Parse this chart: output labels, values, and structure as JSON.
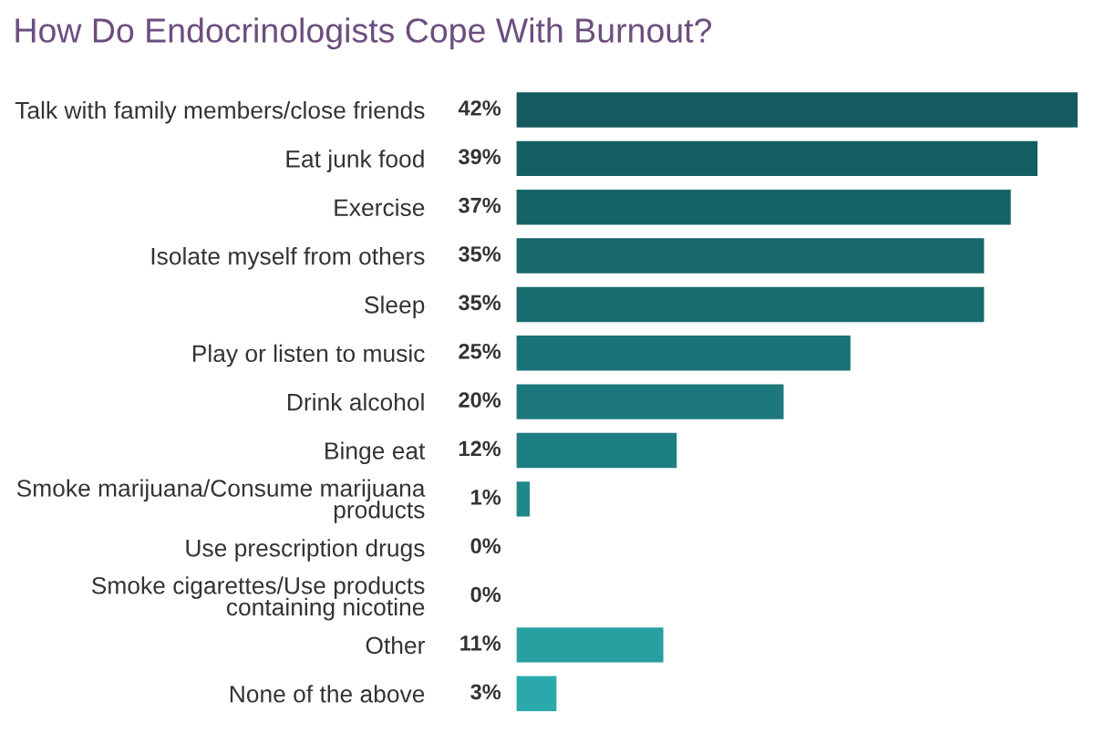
{
  "chart_data": {
    "type": "bar",
    "orientation": "horizontal",
    "title": "How Do Endocrinologists Cope With Burnout?",
    "categories": [
      "Talk with family members/close friends",
      "Eat junk food",
      "Exercise",
      "Isolate myself from others",
      "Sleep",
      "Play or listen to music",
      "Drink alcohol",
      "Binge eat",
      "Smoke marijuana/Consume marijuana\nproducts",
      "Use prescription drugs",
      "Smoke cigarettes/Use products\ncontaining nicotine",
      "Other",
      "None of the above"
    ],
    "values": [
      42,
      39,
      37,
      35,
      35,
      25,
      20,
      12,
      1,
      0,
      0,
      11,
      3
    ],
    "colors": [
      "#145a5e",
      "#155e62",
      "#166367",
      "#17686b",
      "#186b6e",
      "#1a7276",
      "#1c787b",
      "#1e7f82",
      "#20878a",
      "#228c8f",
      "#239092",
      "#28a0a2",
      "#2ba8aa"
    ],
    "value_labels": [
      "42%",
      "39%",
      "37%",
      "35%",
      "35%",
      "25%",
      "20%",
      "12%",
      "1%",
      "0%",
      "0%",
      "11%",
      "3%"
    ],
    "grid": false,
    "legend": false
  }
}
